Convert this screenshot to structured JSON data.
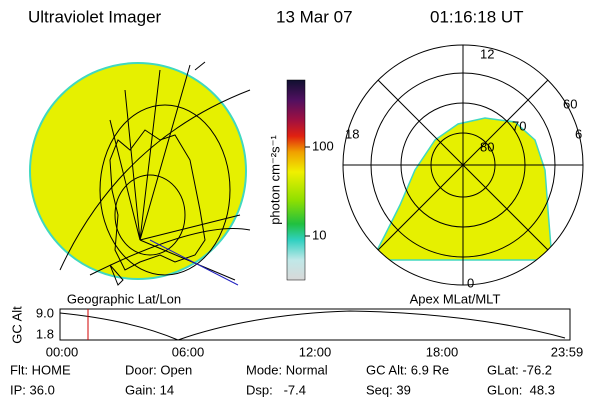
{
  "header": {
    "instrument": "Ultraviolet Imager",
    "date": "13 Mar 07",
    "time": "01:16:18 UT"
  },
  "colorbar": {
    "label": "photon cm⁻²s⁻¹",
    "ticks": [
      "100",
      "10"
    ]
  },
  "polar": {
    "mlt": [
      "12",
      "18",
      "6",
      "0"
    ],
    "mlat": [
      "60",
      "70",
      "80"
    ]
  },
  "map_labels": [
    "Geographic Lat/Lon",
    "Apex MLat/MLT"
  ],
  "alt_plot": {
    "ylabel": "GC Alt",
    "yticks": [
      "9.0",
      "1.8"
    ],
    "xticks": [
      "00:00",
      "06:00",
      "12:00",
      "18:00",
      "23:59"
    ]
  },
  "status": [
    [
      "Flt: HOME",
      "Door: Open",
      "Mode: Normal",
      "GC Alt: 6.9 Re",
      "GLat: -76.2"
    ],
    [
      "IP: 36.0",
      "Gain: 14",
      "Dsp:   -7.4",
      "Seq: 39",
      "GLon:  48.3"
    ]
  ]
}
